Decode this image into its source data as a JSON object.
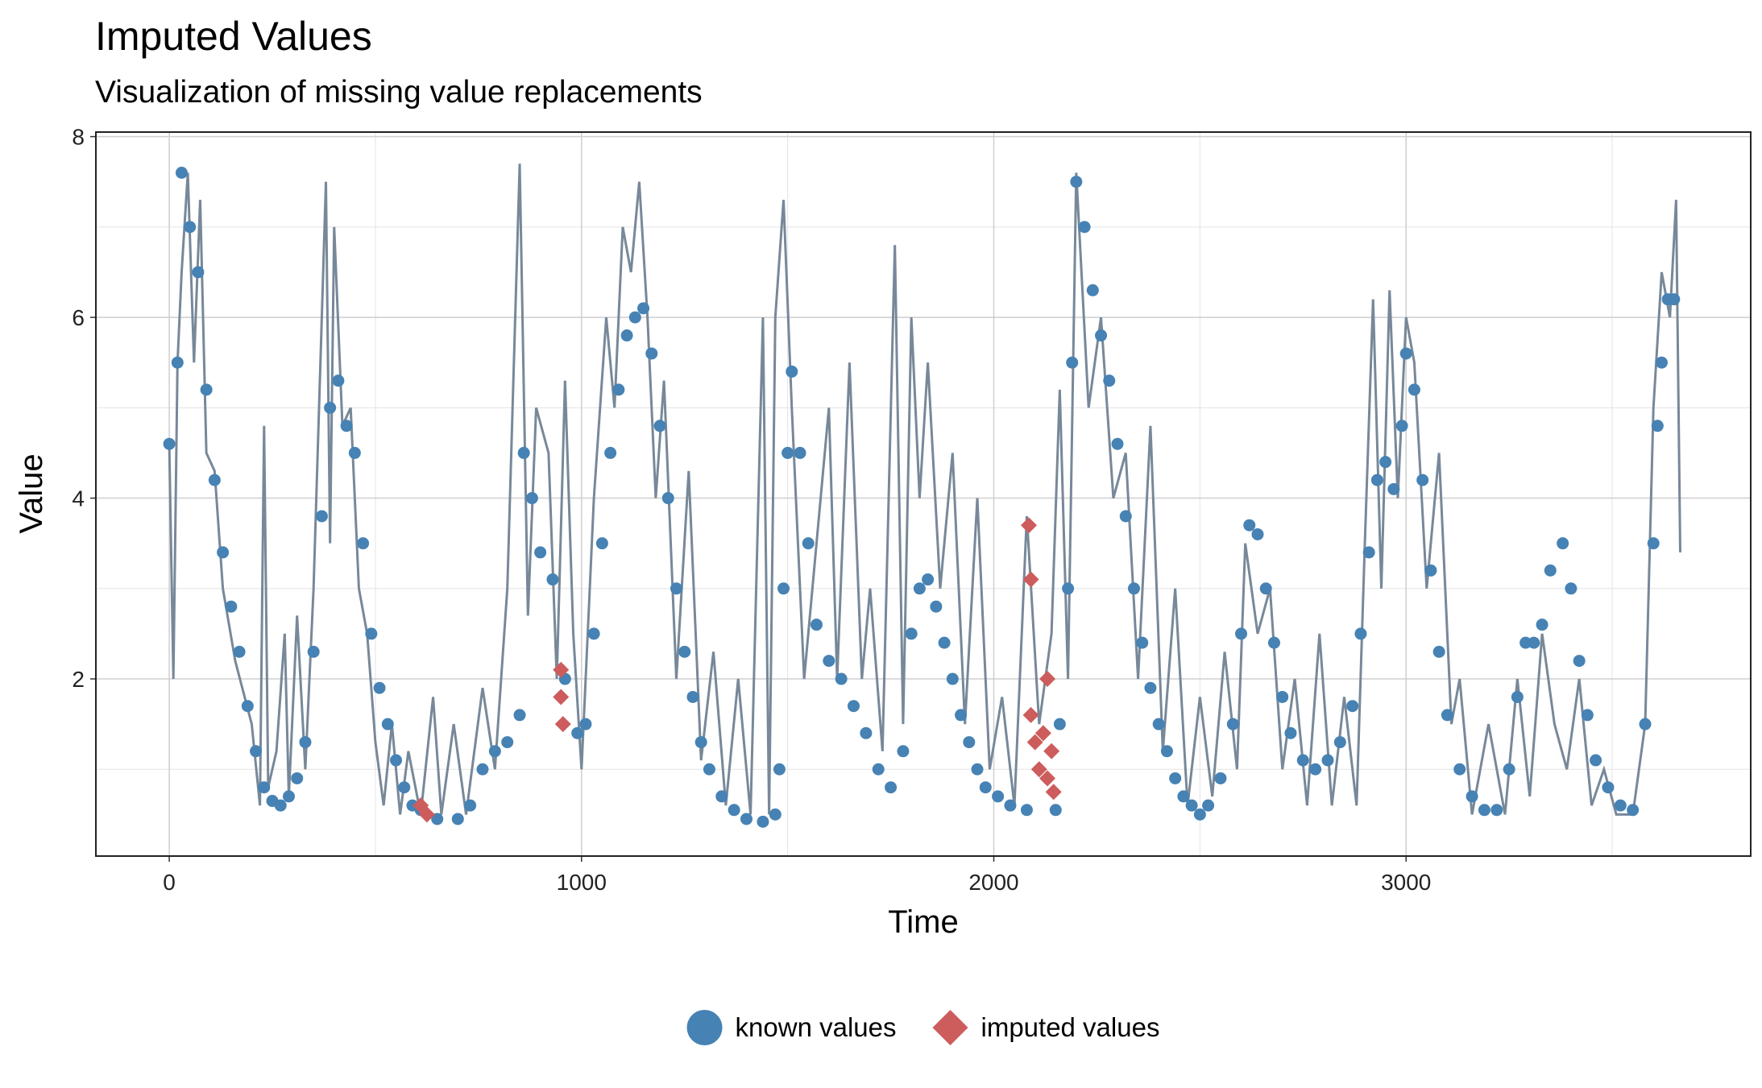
{
  "chart_data": {
    "type": "scatter",
    "title": "Imputed Values",
    "subtitle": "Visualization of missing value replacements",
    "x_label": "Time",
    "y_label": "Value",
    "xlim": [
      -178,
      3836
    ],
    "ylim": [
      0.04,
      8.05
    ],
    "xticks": [
      0,
      1000,
      2000,
      3000
    ],
    "yticks": [
      2,
      4,
      6,
      8
    ],
    "grid": true,
    "legend": "bottom",
    "series": [
      {
        "mark": "line",
        "color": "#778899",
        "x": [
          0,
          10,
          20,
          30,
          45,
          60,
          75,
          90,
          110,
          130,
          160,
          200,
          220,
          230,
          240,
          260,
          280,
          290,
          310,
          330,
          350,
          380,
          390,
          400,
          420,
          440,
          460,
          480,
          500,
          520,
          540,
          560,
          580,
          610,
          640,
          660,
          690,
          720,
          760,
          790,
          820,
          850,
          870,
          890,
          920,
          940,
          960,
          980,
          1000,
          1030,
          1060,
          1080,
          1100,
          1120,
          1140,
          1160,
          1180,
          1200,
          1230,
          1260,
          1290,
          1320,
          1350,
          1380,
          1410,
          1440,
          1455,
          1470,
          1490,
          1510,
          1540,
          1570,
          1600,
          1620,
          1650,
          1680,
          1700,
          1730,
          1760,
          1780,
          1800,
          1820,
          1840,
          1870,
          1900,
          1930,
          1960,
          1990,
          2020,
          2050,
          2080,
          2110,
          2140,
          2160,
          2180,
          2200,
          2230,
          2260,
          2290,
          2320,
          2350,
          2380,
          2410,
          2440,
          2470,
          2500,
          2530,
          2560,
          2590,
          2610,
          2640,
          2670,
          2700,
          2730,
          2760,
          2790,
          2820,
          2850,
          2880,
          2900,
          2920,
          2940,
          2960,
          2980,
          3000,
          3020,
          3050,
          3080,
          3110,
          3130,
          3160,
          3200,
          3240,
          3270,
          3300,
          3330,
          3360,
          3390,
          3420,
          3450,
          3480,
          3510,
          3550,
          3580,
          3600,
          3620,
          3640,
          3655,
          3665
        ],
        "values": [
          4.6,
          2.0,
          5.5,
          6.5,
          7.6,
          5.5,
          7.3,
          4.5,
          4.3,
          3.0,
          2.2,
          1.5,
          0.6,
          4.8,
          0.8,
          1.2,
          2.5,
          0.7,
          2.7,
          1.0,
          3.0,
          7.5,
          3.5,
          7.0,
          4.8,
          5.0,
          3.0,
          2.5,
          1.3,
          0.6,
          1.5,
          0.5,
          1.2,
          0.5,
          1.8,
          0.5,
          1.5,
          0.5,
          1.9,
          1.0,
          3.0,
          7.7,
          2.7,
          5.0,
          4.5,
          2.0,
          5.3,
          2.5,
          1.0,
          4.0,
          6.0,
          5.0,
          7.0,
          6.5,
          7.5,
          6.0,
          4.0,
          5.3,
          2.0,
          4.3,
          1.1,
          2.3,
          0.6,
          2.0,
          0.5,
          6.0,
          0.5,
          6.0,
          7.3,
          5.0,
          2.0,
          3.5,
          5.0,
          2.0,
          5.5,
          2.0,
          3.0,
          1.2,
          6.8,
          1.5,
          6.0,
          4.0,
          5.5,
          3.0,
          4.5,
          1.5,
          4.0,
          1.0,
          1.8,
          0.6,
          3.8,
          1.5,
          2.5,
          5.2,
          2.0,
          7.6,
          5.0,
          6.0,
          4.0,
          4.5,
          2.0,
          4.8,
          1.2,
          3.0,
          0.6,
          1.8,
          0.7,
          2.3,
          1.0,
          3.5,
          2.5,
          3.0,
          1.0,
          2.0,
          0.6,
          2.5,
          0.6,
          1.8,
          0.6,
          3.5,
          6.2,
          3.0,
          6.3,
          4.0,
          6.0,
          5.5,
          3.0,
          4.5,
          1.5,
          2.0,
          0.5,
          1.5,
          0.5,
          2.0,
          0.7,
          2.5,
          1.5,
          1.0,
          2.0,
          0.6,
          1.0,
          0.5,
          0.5,
          1.5,
          5.0,
          6.5,
          6.0,
          7.3,
          3.4
        ]
      },
      {
        "name": "known values",
        "mark": "circle",
        "color": "#4682b4",
        "x": [
          0,
          20,
          30,
          50,
          70,
          90,
          110,
          130,
          150,
          170,
          190,
          210,
          230,
          250,
          270,
          290,
          310,
          330,
          350,
          370,
          390,
          410,
          430,
          450,
          470,
          490,
          510,
          530,
          550,
          570,
          590,
          610,
          650,
          700,
          730,
          760,
          790,
          820,
          850,
          860,
          880,
          900,
          930,
          960,
          990,
          1010,
          1030,
          1050,
          1070,
          1090,
          1110,
          1130,
          1150,
          1170,
          1190,
          1210,
          1230,
          1250,
          1270,
          1290,
          1310,
          1340,
          1370,
          1400,
          1440,
          1470,
          1480,
          1490,
          1500,
          1510,
          1530,
          1550,
          1570,
          1600,
          1630,
          1660,
          1690,
          1720,
          1750,
          1780,
          1800,
          1820,
          1840,
          1860,
          1880,
          1900,
          1920,
          1940,
          1960,
          1980,
          2010,
          2040,
          2080,
          2150,
          2160,
          2180,
          2190,
          2200,
          2220,
          2240,
          2260,
          2280,
          2300,
          2320,
          2340,
          2360,
          2380,
          2400,
          2420,
          2440,
          2460,
          2480,
          2500,
          2520,
          2550,
          2580,
          2600,
          2620,
          2640,
          2660,
          2680,
          2700,
          2720,
          2750,
          2780,
          2810,
          2840,
          2870,
          2890,
          2910,
          2930,
          2950,
          2970,
          2990,
          3000,
          3020,
          3040,
          3060,
          3080,
          3100,
          3130,
          3160,
          3190,
          3220,
          3250,
          3270,
          3290,
          3310,
          3330,
          3350,
          3380,
          3400,
          3420,
          3440,
          3460,
          3490,
          3520,
          3550,
          3580,
          3600,
          3610,
          3620,
          3635,
          3650
        ],
        "values": [
          4.6,
          5.5,
          7.6,
          7.0,
          6.5,
          5.2,
          4.2,
          3.4,
          2.8,
          2.3,
          1.7,
          1.2,
          0.8,
          0.65,
          0.6,
          0.7,
          0.9,
          1.3,
          2.3,
          3.8,
          5.0,
          5.3,
          4.8,
          4.5,
          3.5,
          2.5,
          1.9,
          1.5,
          1.1,
          0.8,
          0.6,
          0.55,
          0.45,
          0.45,
          0.6,
          1.0,
          1.2,
          1.3,
          1.6,
          4.5,
          4.0,
          3.4,
          3.1,
          2.0,
          1.4,
          1.5,
          2.5,
          3.5,
          4.5,
          5.2,
          5.8,
          6.0,
          6.1,
          5.6,
          4.8,
          4.0,
          3.0,
          2.3,
          1.8,
          1.3,
          1.0,
          0.7,
          0.55,
          0.45,
          0.42,
          0.5,
          1.0,
          3.0,
          4.5,
          5.4,
          4.5,
          3.5,
          2.6,
          2.2,
          2.0,
          1.7,
          1.4,
          1.0,
          0.8,
          1.2,
          2.5,
          3.0,
          3.1,
          2.8,
          2.4,
          2.0,
          1.6,
          1.3,
          1.0,
          0.8,
          0.7,
          0.6,
          0.55,
          0.55,
          1.5,
          3.0,
          5.5,
          7.5,
          7.0,
          6.3,
          5.8,
          5.3,
          4.6,
          3.8,
          3.0,
          2.4,
          1.9,
          1.5,
          1.2,
          0.9,
          0.7,
          0.6,
          0.5,
          0.6,
          0.9,
          1.5,
          2.5,
          3.7,
          3.6,
          3.0,
          2.4,
          1.8,
          1.4,
          1.1,
          1.0,
          1.1,
          1.3,
          1.7,
          2.5,
          3.4,
          4.2,
          4.4,
          4.1,
          4.8,
          5.6,
          5.2,
          4.2,
          3.2,
          2.3,
          1.6,
          1.0,
          0.7,
          0.55,
          0.55,
          1.0,
          1.8,
          2.4,
          2.4,
          2.6,
          3.2,
          3.5,
          3.0,
          2.2,
          1.6,
          1.1,
          0.8,
          0.6,
          0.55,
          1.5,
          3.5,
          4.8,
          5.5,
          6.2,
          6.2
        ]
      },
      {
        "name": "imputed values",
        "mark": "diamond",
        "color": "#cd5c5c",
        "x": [
          610,
          625,
          950,
          950,
          955,
          2085,
          2090,
          2130,
          2090,
          2100,
          2110,
          2120,
          2130,
          2140,
          2145
        ],
        "values": [
          0.6,
          0.5,
          2.1,
          1.8,
          1.5,
          3.7,
          3.1,
          2.0,
          1.6,
          1.3,
          1.0,
          1.4,
          0.9,
          1.2,
          0.75
        ]
      }
    ]
  }
}
